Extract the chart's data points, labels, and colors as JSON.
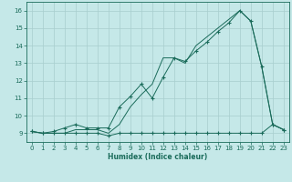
{
  "title": "",
  "xlabel": "Humidex (Indice chaleur)",
  "ylabel": "",
  "background_color": "#c5e8e8",
  "grid_color": "#a8cece",
  "line_color": "#1a6b5a",
  "xlim": [
    -0.5,
    23.5
  ],
  "ylim": [
    8.5,
    16.5
  ],
  "xticks": [
    0,
    1,
    2,
    3,
    4,
    5,
    6,
    7,
    8,
    9,
    10,
    11,
    12,
    13,
    14,
    15,
    16,
    17,
    18,
    19,
    20,
    21,
    22,
    23
  ],
  "yticks": [
    9,
    10,
    11,
    12,
    13,
    14,
    15,
    16
  ],
  "series1_x": [
    0,
    1,
    2,
    3,
    4,
    5,
    6,
    7,
    8,
    9,
    10,
    11,
    12,
    13,
    14,
    15,
    16,
    17,
    18,
    19,
    20,
    21,
    22,
    23
  ],
  "series1_y": [
    9.1,
    9.0,
    9.0,
    9.0,
    9.0,
    9.0,
    9.0,
    8.85,
    9.0,
    9.0,
    9.0,
    9.0,
    9.0,
    9.0,
    9.0,
    9.0,
    9.0,
    9.0,
    9.0,
    9.0,
    9.0,
    9.0,
    9.5,
    9.2
  ],
  "series2_x": [
    0,
    1,
    2,
    3,
    4,
    5,
    6,
    7,
    8,
    9,
    10,
    11,
    12,
    13,
    14,
    15,
    16,
    17,
    18,
    19,
    20,
    21,
    22,
    23
  ],
  "series2_y": [
    9.1,
    9.0,
    9.1,
    9.3,
    9.5,
    9.3,
    9.3,
    9.3,
    10.5,
    11.1,
    11.8,
    11.0,
    12.2,
    13.3,
    13.1,
    13.7,
    14.2,
    14.8,
    15.3,
    16.0,
    15.4,
    12.8,
    9.5,
    9.2
  ],
  "series3_x": [
    0,
    1,
    2,
    3,
    4,
    5,
    6,
    7,
    8,
    9,
    10,
    11,
    12,
    13,
    14,
    15,
    16,
    17,
    18,
    19,
    20,
    21,
    22,
    23
  ],
  "series3_y": [
    9.1,
    9.0,
    9.0,
    9.0,
    9.2,
    9.2,
    9.2,
    9.0,
    9.5,
    10.5,
    11.2,
    11.8,
    13.3,
    13.3,
    13.0,
    14.0,
    14.5,
    15.0,
    15.5,
    16.0,
    15.4,
    12.8,
    9.5,
    9.2
  ]
}
